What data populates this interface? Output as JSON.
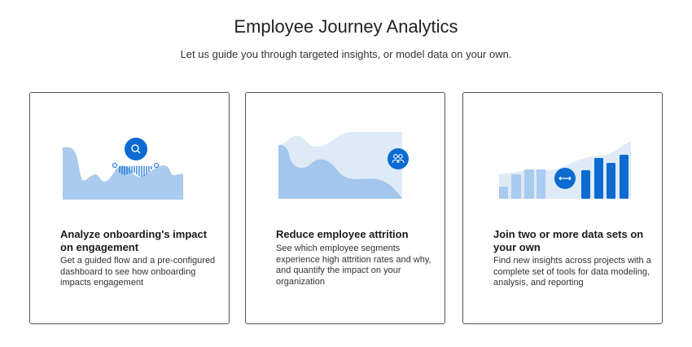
{
  "header": {
    "title": "Employee Journey Analytics",
    "subtitle": "Let us guide you through targeted insights, or model data on your own."
  },
  "colors": {
    "accent": "#0b6bd1",
    "light_area": "#a9cbee",
    "pale_area": "#dfeaf7"
  },
  "cards": [
    {
      "title": "Analyze onboarding's impact on engagement",
      "description": "Get a guided flow and a pre-configured dashboard to see how onboarding impacts engagement",
      "icon": "search-icon"
    },
    {
      "title": "Reduce employee attrition",
      "description": "See which employee segments experience high attrition rates and why, and quantify the impact on your organization",
      "icon": "people-icon"
    },
    {
      "title": "Join two or more data sets on your own",
      "description": "Find new insights across projects with a complete set of tools for data modeling, analysis, and reporting",
      "icon": "double-arrow-icon"
    }
  ]
}
